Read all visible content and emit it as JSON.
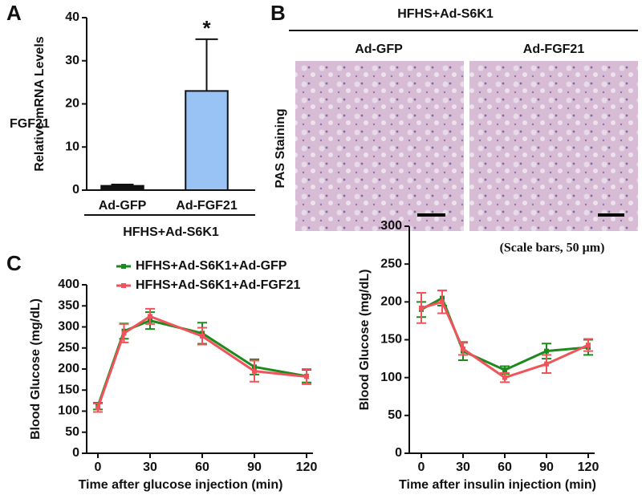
{
  "chart_data": [
    {
      "type": "bar",
      "panel": "A",
      "ylabel": "Relative mRNA Levels",
      "ylabel_top": "FGF21",
      "categories": [
        "Ad-GFP",
        "Ad-FGF21"
      ],
      "values": [
        1,
        23
      ],
      "errors": [
        0.3,
        12
      ],
      "colors": [
        "#111111",
        "#99c2f5"
      ],
      "group_label": "HFHS+Ad-S6K1",
      "annotation": "*",
      "ylim": [
        0,
        40
      ],
      "yticks": [
        0,
        10,
        20,
        30,
        40
      ]
    },
    {
      "type": "line",
      "panel": "C",
      "xlabel": "Time after glucose injection (min)",
      "ylabel": "Blood Glucose (mg/dL)",
      "x": [
        0,
        15,
        30,
        60,
        90,
        120
      ],
      "series": [
        {
          "name": "HFHS+Ad-S6K1+Ad-GFP",
          "color": "#1e8a1e",
          "values": [
            112,
            290,
            315,
            285,
            205,
            183
          ],
          "errors": [
            8,
            18,
            20,
            25,
            18,
            15
          ]
        },
        {
          "name": "HFHS+Ad-S6K1+Ad-FGF21",
          "color": "#f0545a",
          "values": [
            108,
            285,
            325,
            278,
            195,
            182
          ],
          "errors": [
            10,
            22,
            18,
            20,
            25,
            18
          ]
        }
      ],
      "xlim": [
        0,
        120
      ],
      "xticks": [
        0,
        30,
        60,
        90,
        120
      ],
      "ylim": [
        0,
        400
      ],
      "yticks": [
        0,
        50,
        100,
        150,
        200,
        250,
        300,
        350,
        400
      ]
    },
    {
      "type": "line",
      "xlabel": "Time after insulin injection (min)",
      "ylabel": "Blood Glucose (mg/dL)",
      "x": [
        0,
        15,
        30,
        60,
        90,
        120
      ],
      "series": [
        {
          "color": "#1e8a1e",
          "values": [
            190,
            205,
            135,
            110,
            135,
            140
          ],
          "errors": [
            10,
            10,
            12,
            5,
            10,
            10
          ]
        },
        {
          "color": "#f0545a",
          "values": [
            192,
            200,
            138,
            100,
            118,
            143
          ],
          "errors": [
            20,
            15,
            8,
            6,
            12,
            8
          ]
        }
      ],
      "xlim": [
        0,
        120
      ],
      "xticks": [
        0,
        30,
        60,
        90,
        120
      ],
      "ylim": [
        0,
        300
      ],
      "yticks": [
        0,
        50,
        100,
        150,
        200,
        250,
        300
      ]
    }
  ],
  "panel_b": {
    "label": "B",
    "group": "HFHS+Ad-S6K1",
    "columns": [
      "Ad-GFP",
      "Ad-FGF21"
    ],
    "row_label": "PAS Staining",
    "note": "(Scale bars, 50 μm)"
  }
}
